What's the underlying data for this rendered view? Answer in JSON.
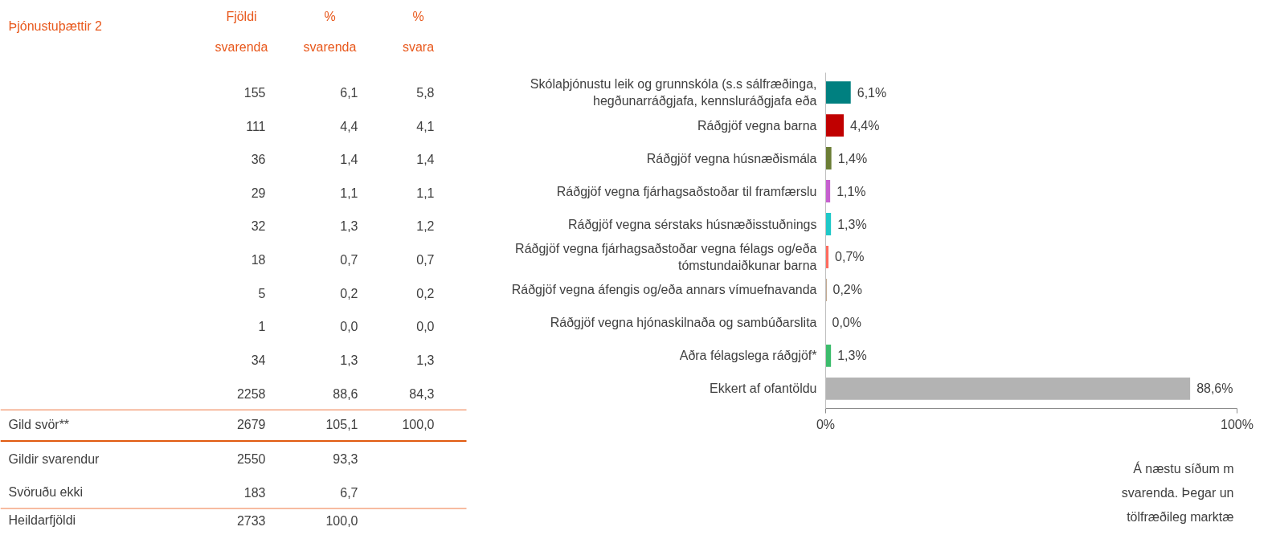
{
  "chart_data": {
    "type": "bar",
    "orientation": "horizontal",
    "title": "Þjónustuþættir 2",
    "categories": [
      "Skólaþjónustu leik og grunnskóla (s.s sálfræðinga,\nhegðunarráðgjafa, kennsluráðgjafa eða",
      "Ráðgjöf vegna barna",
      "Ráðgjöf vegna húsnæðismála",
      "Ráðgjöf vegna fjárhagsaðstoðar til framfærslu",
      "Ráðgjöf vegna sérstaks húsnæðisstuðnings",
      "Ráðgjöf vegna fjárhagsaðstoðar vegna félags og/eða\ntómstundaiðkunar barna",
      "Ráðgjöf vegna áfengis og/eða annars vímuefnavanda",
      "Ráðgjöf vegna hjónaskilnaða og sambúðarslita",
      "Aðra félagslega ráðgjöf*",
      "Ekkert af ofantöldu"
    ],
    "values": [
      6.1,
      4.4,
      1.4,
      1.1,
      1.3,
      0.7,
      0.2,
      0.0,
      1.3,
      88.6
    ],
    "colors": [
      "#008080",
      "#c00000",
      "#6b7d35",
      "#c660cf",
      "#1ec8c8",
      "#ff6b5e",
      "#8b5a2b",
      "#6a1fb5",
      "#3cbc6c",
      "#b3b3b3"
    ],
    "value_labels": [
      "6,1%",
      "4,4%",
      "1,4%",
      "1,1%",
      "1,3%",
      "0,7%",
      "0,2%",
      "0,0%",
      "1,3%",
      "88,6%"
    ],
    "xlim": [
      0,
      100
    ],
    "xticks": [
      {
        "value": 0,
        "label": "0%"
      },
      {
        "value": 100,
        "label": "100%"
      }
    ],
    "grid": false,
    "annotations": [
      "Fjöldi\nsvarenda",
      "%\nsvarenda",
      "%\nsvara",
      "155",
      "6,1",
      "5,8",
      "111",
      "4,4",
      "4,1",
      "36",
      "1,4",
      "1,4",
      "29",
      "1,1",
      "1,1",
      "32",
      "1,3",
      "1,2",
      "18",
      "0,7",
      "0,7",
      "5",
      "0,2",
      "0,2",
      "1",
      "0,0",
      "0,0",
      "34",
      "1,3",
      "1,3",
      "2258",
      "88,6",
      "84,3",
      "Gild svör**",
      "2679",
      "105,1",
      "100,0",
      "Gildir svarendur",
      "2550",
      "93,3",
      "Svöruðu ekki",
      "183",
      "6,7",
      "Heildarfjöldi",
      "2733",
      "100,0",
      "Á næstu síðum m",
      "svarenda. Þegar un",
      "tölfræðileg marktæ"
    ]
  }
}
